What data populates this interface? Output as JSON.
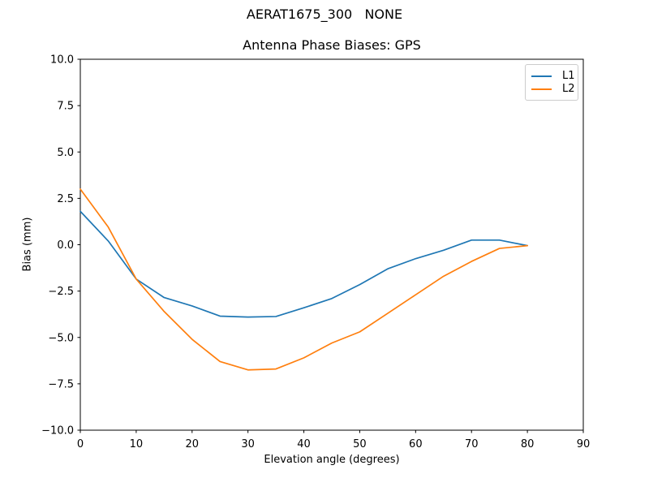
{
  "chart_data": {
    "type": "line",
    "suptitle": "AERAT1675_300   NONE",
    "title": "Antenna Phase Biases: GPS",
    "xlabel": "Elevation angle (degrees)",
    "ylabel": "Bias (mm)",
    "xlim": [
      0,
      90
    ],
    "ylim": [
      -10,
      10
    ],
    "xticks": [
      0,
      10,
      20,
      30,
      40,
      50,
      60,
      70,
      80,
      90
    ],
    "yticks": [
      -10,
      -7.5,
      -5,
      -2.5,
      0,
      2.5,
      5,
      7.5,
      10
    ],
    "grid": false,
    "legend_position": "upper right",
    "x": [
      0,
      5,
      10,
      15,
      20,
      25,
      30,
      35,
      40,
      45,
      50,
      55,
      60,
      65,
      70,
      75,
      80
    ],
    "series": [
      {
        "name": "L1",
        "color": "#1f77b4",
        "values": [
          1.8,
          0.2,
          -1.85,
          -2.85,
          -3.3,
          -3.85,
          -3.9,
          -3.87,
          -3.4,
          -2.9,
          -2.15,
          -1.3,
          -0.75,
          -0.3,
          0.25,
          0.25,
          -0.05
        ]
      },
      {
        "name": "L2",
        "color": "#ff7f0e",
        "values": [
          3.0,
          0.95,
          -1.85,
          -3.6,
          -5.1,
          -6.3,
          -6.75,
          -6.7,
          -6.1,
          -5.3,
          -4.7,
          -3.7,
          -2.7,
          -1.7,
          -0.9,
          -0.2,
          -0.05
        ]
      }
    ]
  }
}
